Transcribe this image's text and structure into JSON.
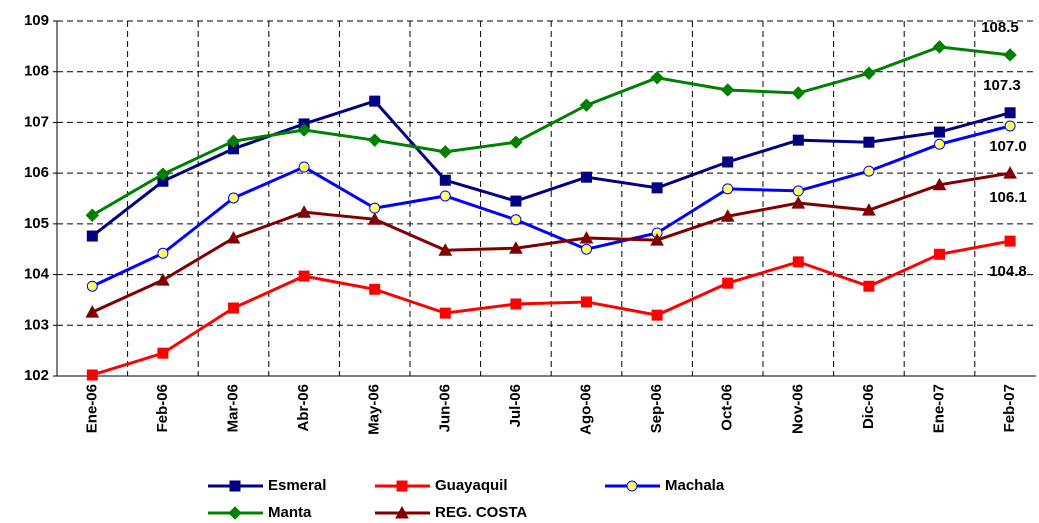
{
  "chart_data": {
    "type": "line",
    "categories": [
      "Ene-06",
      "Feb-06",
      "Mar-06",
      "Abr-06",
      "May-06",
      "Jun-06",
      "Jul-06",
      "Ago-06",
      "Sep-06",
      "Oct-06",
      "Nov-06",
      "Dic-06",
      "Ene-07",
      "Feb-07"
    ],
    "ylim": [
      102,
      109
    ],
    "yticks": [
      102,
      103,
      104,
      105,
      106,
      107,
      108,
      109
    ],
    "grid": true,
    "legend": "bottom",
    "series": [
      {
        "name": "Esmeral",
        "color": "#000080",
        "marker": "square",
        "marker_fill": "#000080",
        "values": [
          104.76,
          105.84,
          106.48,
          106.97,
          107.42,
          105.86,
          105.45,
          105.92,
          105.71,
          106.22,
          106.65,
          106.61,
          106.81,
          107.19
        ]
      },
      {
        "name": "Guayaquil",
        "color": "#ff0000",
        "marker": "square",
        "marker_fill": "#ff0000",
        "values": [
          102.02,
          102.45,
          103.34,
          103.97,
          103.71,
          103.24,
          103.42,
          103.46,
          103.2,
          103.83,
          104.25,
          103.77,
          104.4,
          104.66
        ]
      },
      {
        "name": "Machala",
        "color": "#0000ff",
        "marker": "circle",
        "marker_fill": "#ffff66",
        "values": [
          103.77,
          104.42,
          105.51,
          106.12,
          105.31,
          105.55,
          105.08,
          104.5,
          104.82,
          105.69,
          105.65,
          106.04,
          106.57,
          106.93
        ]
      },
      {
        "name": "Manta",
        "color": "#008000",
        "marker": "diamond",
        "marker_fill": "#008000",
        "values": [
          105.17,
          105.98,
          106.63,
          106.85,
          106.65,
          106.42,
          106.61,
          107.34,
          107.88,
          107.64,
          107.58,
          107.97,
          108.49,
          108.33
        ]
      },
      {
        "name": "REG. COSTA",
        "color": "#800000",
        "marker": "triangle",
        "marker_fill": "#800000",
        "values": [
          103.26,
          103.89,
          104.72,
          105.23,
          105.09,
          104.48,
          104.52,
          104.72,
          104.68,
          105.15,
          105.41,
          105.27,
          105.77,
          106.0
        ]
      }
    ],
    "annotations": [
      "108.5",
      "107.3",
      "107.0",
      "106.1",
      "104.8"
    ]
  }
}
